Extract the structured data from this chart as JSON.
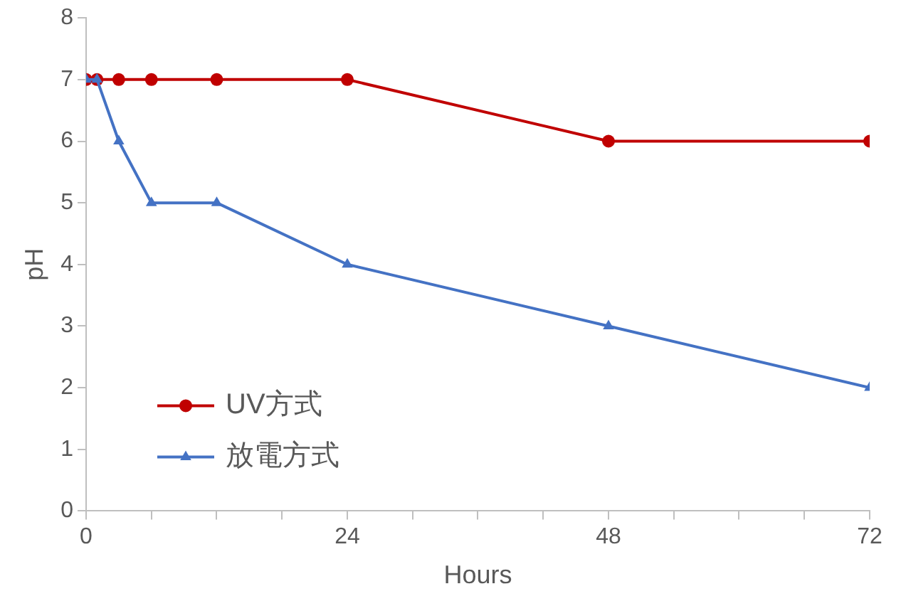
{
  "chart_data": {
    "type": "line",
    "xlabel": "Hours",
    "ylabel": "pH",
    "x": [
      0,
      1,
      3,
      6,
      12,
      24,
      48,
      72
    ],
    "series": [
      {
        "name": "UV方式",
        "color": "#c00000",
        "marker": "circle",
        "values": [
          7,
          7,
          7,
          7,
          7,
          7,
          6,
          6
        ]
      },
      {
        "name": "放電方式",
        "color": "#4472c4",
        "marker": "triangle",
        "values": [
          7,
          7,
          6,
          5,
          5,
          4,
          3,
          2
        ]
      }
    ],
    "xlim": [
      0,
      72
    ],
    "xticks": [
      0,
      {
        "value": 6,
        "label": null
      },
      {
        "value": 12,
        "label": null
      },
      {
        "value": 18,
        "label": null
      },
      24,
      {
        "value": 30,
        "label": null
      },
      {
        "value": 36,
        "label": null
      },
      {
        "value": 42,
        "label": null
      },
      48,
      {
        "value": 54,
        "label": null
      },
      {
        "value": 60,
        "label": null
      },
      {
        "value": 66,
        "label": null
      },
      72
    ],
    "ylim": [
      0,
      8
    ],
    "yticks": [
      0,
      1,
      2,
      3,
      4,
      5,
      6,
      7,
      8
    ],
    "grid": false,
    "legend": "bottom left",
    "line_style": "solid"
  }
}
